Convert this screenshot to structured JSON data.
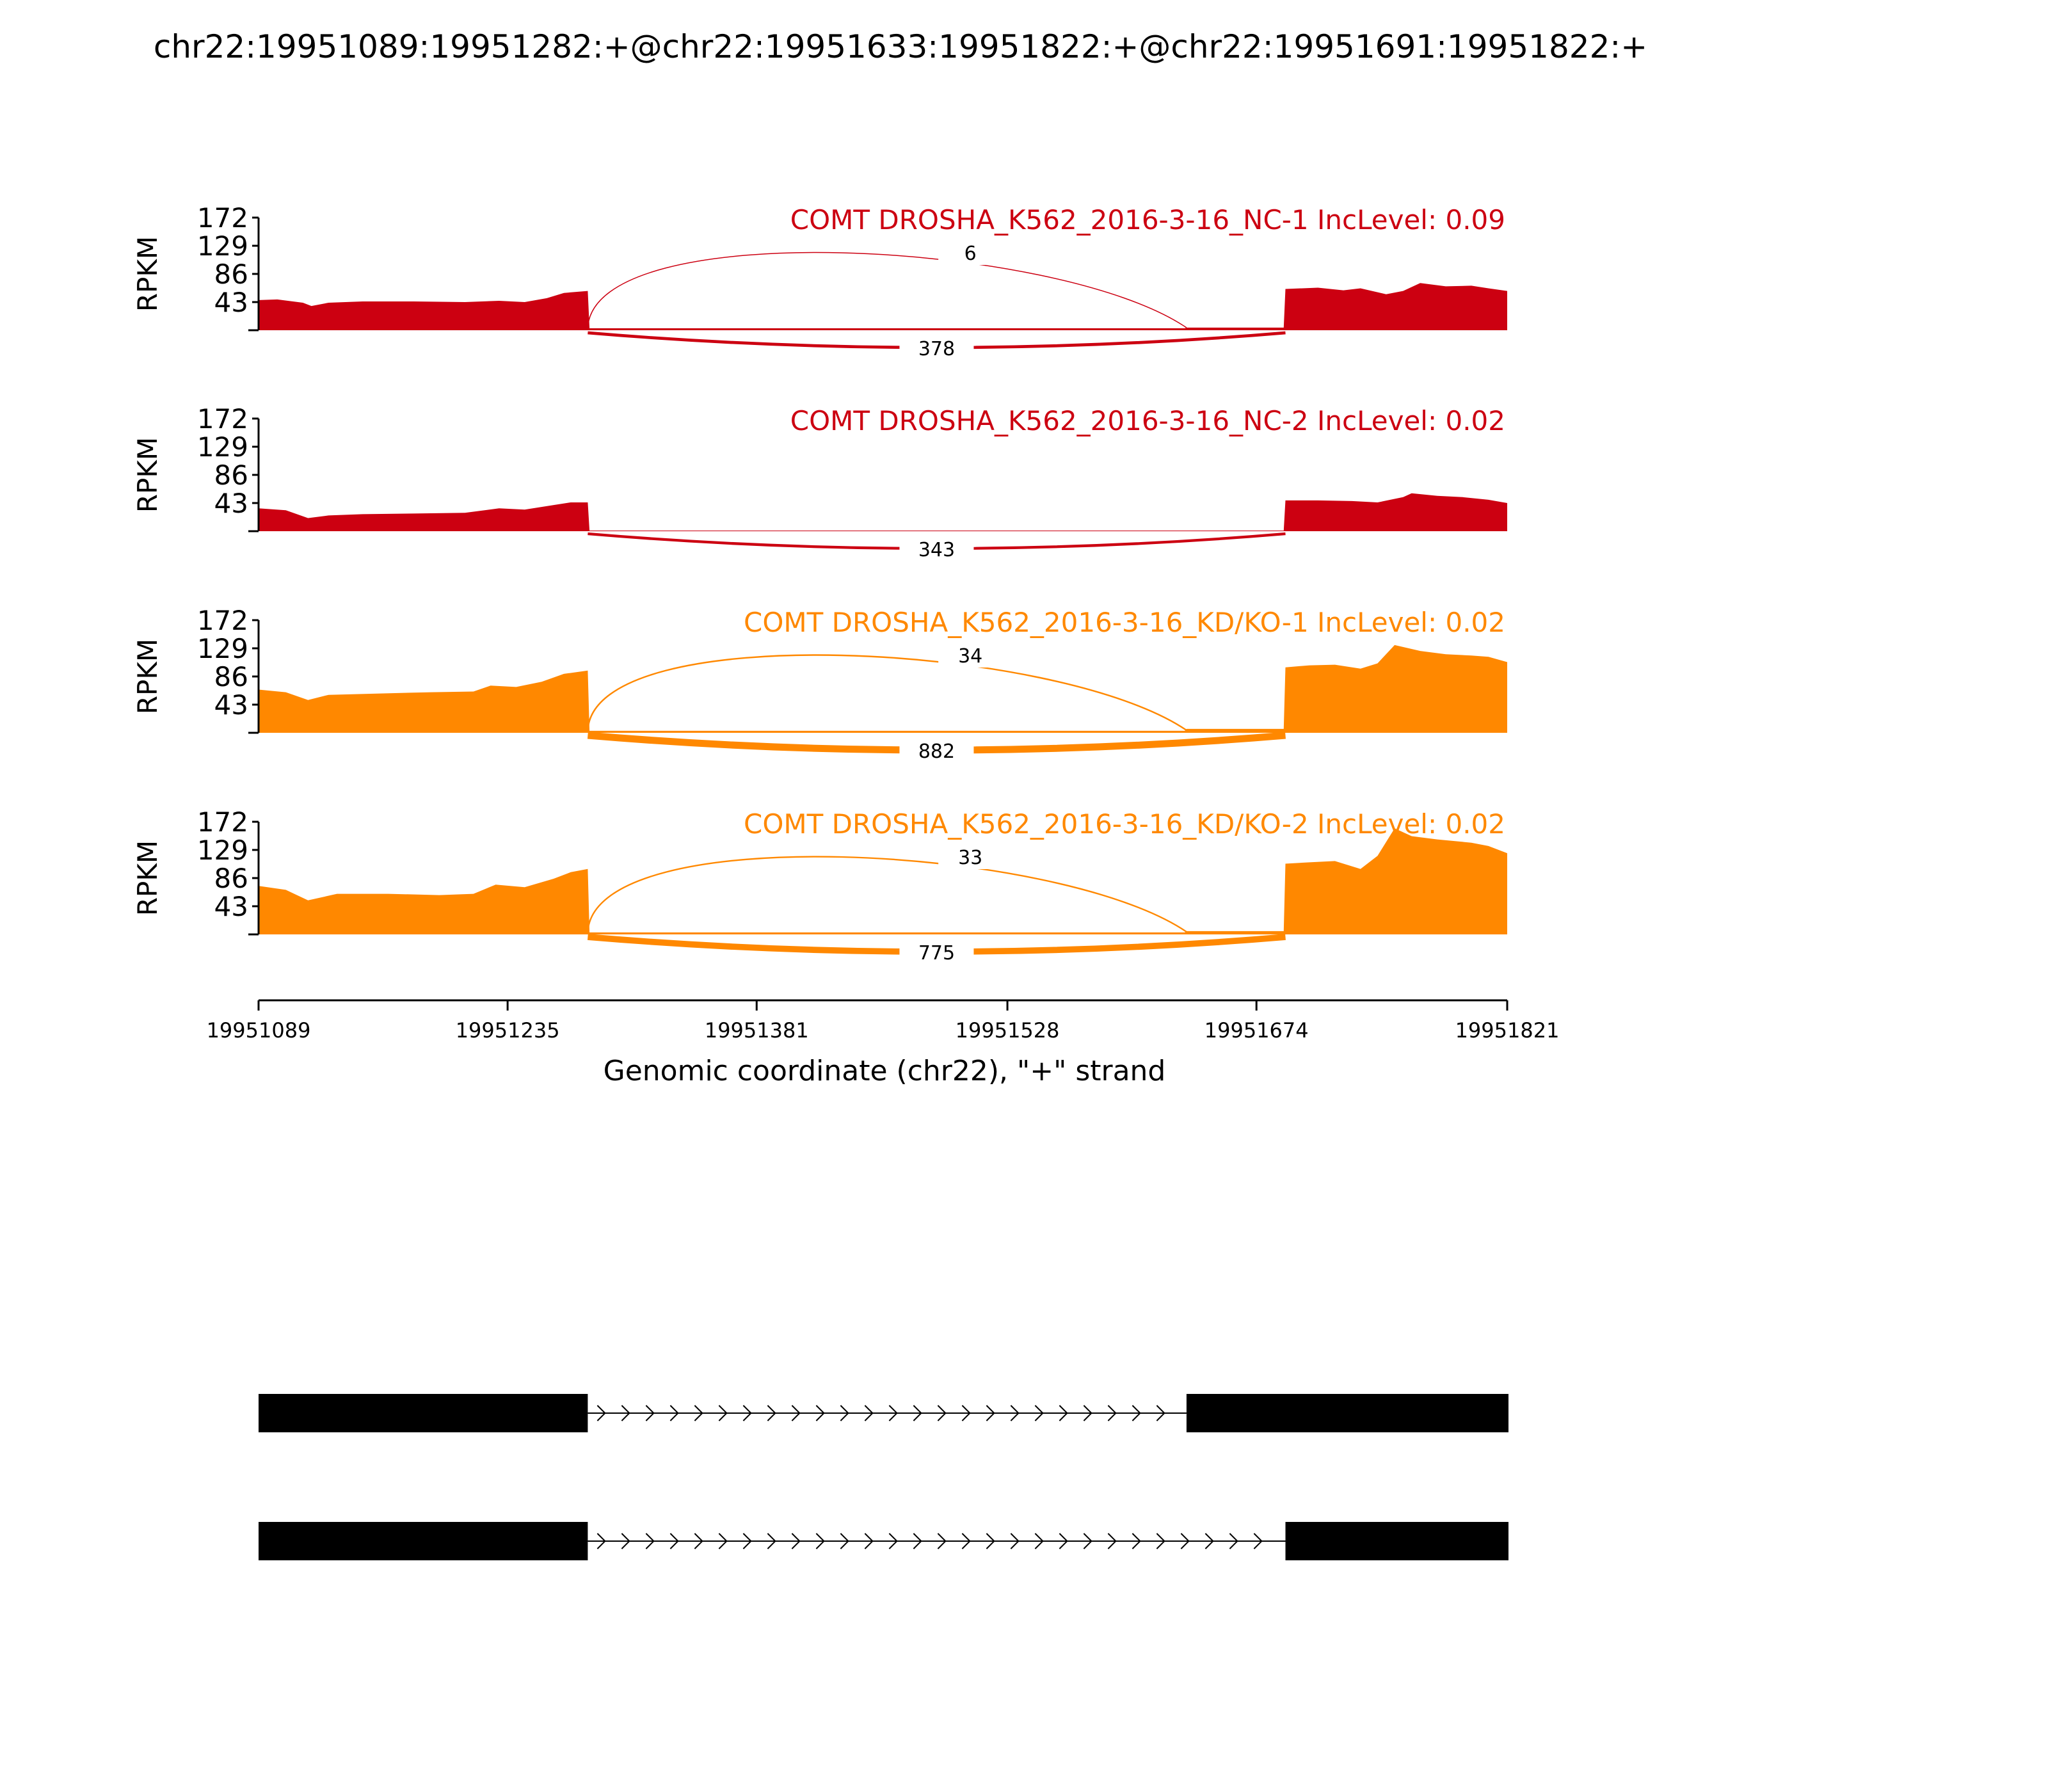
{
  "figure": {
    "title": "chr22:19951089:19951282:+@chr22:19951633:19951822:+@chr22:19951691:19951822:+",
    "x_axis_label": "Genomic coordinate (chr22), \"+\" strand",
    "y_axis_label": "RPKM"
  },
  "chart_data": {
    "type": "area",
    "title": "chr22:19951089:19951282:+@chr22:19951633:19951822:+@chr22:19951691:19951822:+",
    "xlabel": "Genomic coordinate (chr22), \"+\" strand",
    "ylabel": "RPKM",
    "xlim": [
      19951089,
      19951821
    ],
    "x_ticks": [
      "19951089",
      "19951235",
      "19951381",
      "19951528",
      "19951674",
      "19951821"
    ],
    "ylim": [
      0,
      172
    ],
    "y_ticks": [
      "43",
      "86",
      "129",
      "172"
    ],
    "exons": [
      {
        "start": 19951089,
        "end": 19951282
      },
      {
        "start": 19951633,
        "end": 19951822
      },
      {
        "start": 19951691,
        "end": 19951822
      }
    ],
    "series": [
      {
        "name": "COMT DROSHA_K562_2016-3-16_NC-1 IncLevel: 0.09",
        "color": "#cc0011",
        "inclusion_junction_reads": 6,
        "skipping_junction_reads": 378,
        "coverage": [
          [
            19951089,
            46
          ],
          [
            19951100,
            47
          ],
          [
            19951115,
            42
          ],
          [
            19951120,
            37
          ],
          [
            19951130,
            42
          ],
          [
            19951150,
            44
          ],
          [
            19951180,
            44
          ],
          [
            19951210,
            43
          ],
          [
            19951230,
            45
          ],
          [
            19951245,
            43
          ],
          [
            19951258,
            49
          ],
          [
            19951268,
            57
          ],
          [
            19951282,
            60
          ],
          [
            19951283,
            3
          ],
          [
            19951632,
            3
          ],
          [
            19951633,
            4
          ],
          [
            19951690,
            4
          ],
          [
            19951691,
            63
          ],
          [
            19951710,
            65
          ],
          [
            19951725,
            61
          ],
          [
            19951735,
            64
          ],
          [
            19951750,
            55
          ],
          [
            19951760,
            60
          ],
          [
            19951770,
            72
          ],
          [
            19951785,
            67
          ],
          [
            19951800,
            68
          ],
          [
            19951810,
            64
          ],
          [
            19951821,
            60
          ]
        ]
      },
      {
        "name": "COMT DROSHA_K562_2016-3-16_NC-2 IncLevel: 0.02",
        "color": "#cc0011",
        "inclusion_junction_reads": 0,
        "skipping_junction_reads": 343,
        "coverage": [
          [
            19951089,
            35
          ],
          [
            19951105,
            32
          ],
          [
            19951118,
            20
          ],
          [
            19951130,
            24
          ],
          [
            19951150,
            26
          ],
          [
            19951180,
            27
          ],
          [
            19951210,
            28
          ],
          [
            19951230,
            35
          ],
          [
            19951245,
            33
          ],
          [
            19951262,
            40
          ],
          [
            19951272,
            44
          ],
          [
            19951282,
            44
          ],
          [
            19951283,
            1
          ],
          [
            19951690,
            1
          ],
          [
            19951691,
            47
          ],
          [
            19951710,
            47
          ],
          [
            19951730,
            46
          ],
          [
            19951745,
            44
          ],
          [
            19951760,
            52
          ],
          [
            19951765,
            58
          ],
          [
            19951780,
            54
          ],
          [
            19951795,
            52
          ],
          [
            19951810,
            48
          ],
          [
            19951821,
            43
          ]
        ]
      },
      {
        "name": "COMT DROSHA_K562_2016-3-16_KD/KO-1 IncLevel: 0.02",
        "color": "#ff8800",
        "inclusion_junction_reads": 34,
        "skipping_junction_reads": 882,
        "coverage": [
          [
            19951089,
            66
          ],
          [
            19951105,
            62
          ],
          [
            19951118,
            50
          ],
          [
            19951130,
            58
          ],
          [
            19951160,
            60
          ],
          [
            19951190,
            62
          ],
          [
            19951215,
            63
          ],
          [
            19951225,
            72
          ],
          [
            19951240,
            70
          ],
          [
            19951255,
            78
          ],
          [
            19951268,
            90
          ],
          [
            19951282,
            95
          ],
          [
            19951283,
            3
          ],
          [
            19951632,
            3
          ],
          [
            19951633,
            6
          ],
          [
            19951690,
            6
          ],
          [
            19951691,
            100
          ],
          [
            19951705,
            103
          ],
          [
            19951720,
            104
          ],
          [
            19951735,
            98
          ],
          [
            19951745,
            106
          ],
          [
            19951755,
            134
          ],
          [
            19951770,
            125
          ],
          [
            19951785,
            120
          ],
          [
            19951800,
            118
          ],
          [
            19951810,
            116
          ],
          [
            19951821,
            108
          ]
        ]
      },
      {
        "name": "COMT DROSHA_K562_2016-3-16_KD/KO-2 IncLevel: 0.02",
        "color": "#ff8800",
        "inclusion_junction_reads": 33,
        "skipping_junction_reads": 775,
        "coverage": [
          [
            19951089,
            74
          ],
          [
            19951105,
            68
          ],
          [
            19951118,
            52
          ],
          [
            19951135,
            62
          ],
          [
            19951165,
            62
          ],
          [
            19951195,
            60
          ],
          [
            19951215,
            62
          ],
          [
            19951228,
            76
          ],
          [
            19951245,
            72
          ],
          [
            19951262,
            85
          ],
          [
            19951272,
            95
          ],
          [
            19951282,
            100
          ],
          [
            19951283,
            3
          ],
          [
            19951632,
            3
          ],
          [
            19951633,
            5
          ],
          [
            19951690,
            5
          ],
          [
            19951691,
            108
          ],
          [
            19951705,
            110
          ],
          [
            19951720,
            112
          ],
          [
            19951735,
            100
          ],
          [
            19951745,
            120
          ],
          [
            19951755,
            162
          ],
          [
            19951765,
            150
          ],
          [
            19951780,
            145
          ],
          [
            19951800,
            140
          ],
          [
            19951810,
            135
          ],
          [
            19951821,
            124
          ]
        ]
      }
    ]
  }
}
